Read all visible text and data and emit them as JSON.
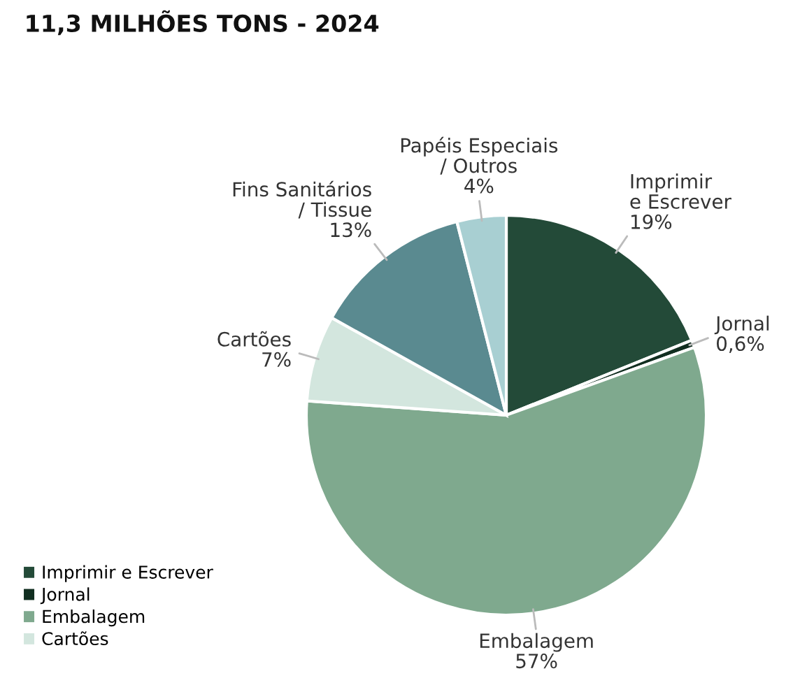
{
  "chart_data": {
    "type": "pie",
    "title": "11,3 MILHÕES TONS - 2024",
    "categories": [
      "Imprimir e Escrever",
      "Jornal",
      "Embalagem",
      "Cartões",
      "Fins Sanitários / Tissue",
      "Papéis Especiais / Outros"
    ],
    "values": [
      19,
      0.6,
      57,
      7,
      13,
      4
    ],
    "value_labels": [
      "19%",
      "0,6%",
      "57%",
      "7%",
      "13%",
      "4%"
    ],
    "colors": [
      "#234a38",
      "#112e20",
      "#7fa98e",
      "#d3e6de",
      "#5a8a90",
      "#a8cfd2"
    ],
    "legend": "bottom left"
  }
}
